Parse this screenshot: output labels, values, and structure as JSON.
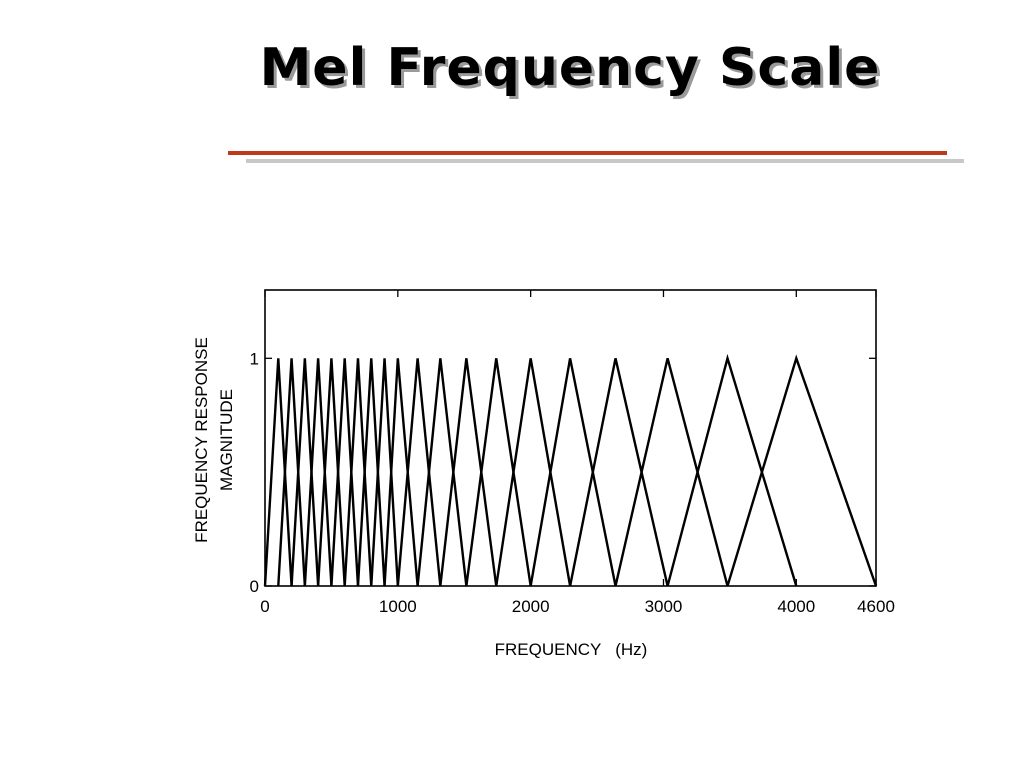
{
  "slide": {
    "title": "Mel Frequency Scale",
    "rule_color": "#c0391b",
    "rule_shadow_color": "#c8c8c8"
  },
  "chart_data": {
    "type": "line",
    "title": "",
    "xlabel": "FREQUENCY   (Hz)",
    "ylabel_line1": "FREQUENCY RESPONSE",
    "ylabel_line2": "MAGNITUDE",
    "xlim": [
      0,
      4600
    ],
    "ylim": [
      0,
      1.3
    ],
    "x_tick_labels": [
      "0",
      "1000",
      "2000",
      "3000",
      "4000",
      "4600"
    ],
    "x_tick_values": [
      0,
      1000,
      2000,
      3000,
      4000,
      4600
    ],
    "y_tick_labels": [
      "0",
      "1"
    ],
    "y_tick_values": [
      0,
      1
    ],
    "filter_peak": 1,
    "filter_centers_hz": [
      100,
      200,
      300,
      400,
      500,
      600,
      700,
      800,
      900,
      1000,
      1149,
      1320,
      1516,
      1741,
      2000,
      2297,
      2639,
      3031,
      3482,
      4000
    ],
    "filter_left_edges_hz": [
      0,
      100,
      200,
      300,
      400,
      500,
      600,
      700,
      800,
      900,
      1000,
      1149,
      1320,
      1516,
      1741,
      2000,
      2297,
      2639,
      3031,
      3482
    ],
    "filter_right_edges_hz": [
      200,
      300,
      400,
      500,
      600,
      700,
      800,
      900,
      1000,
      1149,
      1320,
      1516,
      1741,
      2000,
      2297,
      2639,
      3031,
      3482,
      4000,
      4600
    ],
    "grid": false,
    "line_color": "#000000"
  }
}
